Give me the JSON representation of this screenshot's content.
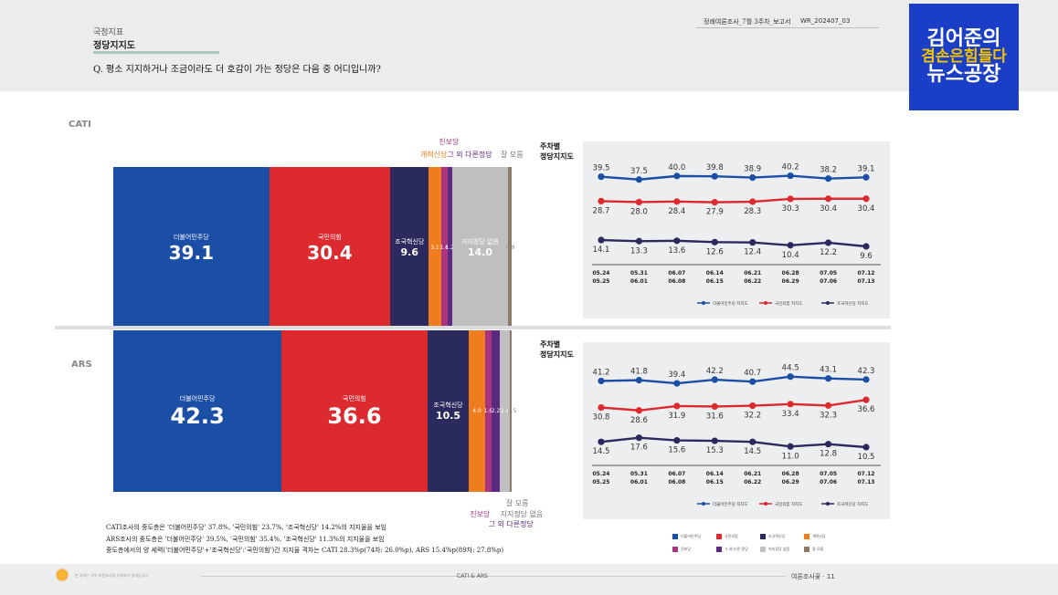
{
  "header": {
    "small_label": "국정지표",
    "title": "정당지지도",
    "question": "Q. 평소 지지하거나 조금이라도 더 호감이 가는 정당은 다음 중 어디입니까?",
    "doc_id": "정례여론조사_7월 3주차_보고서",
    "doc_code": "WR_202407_03"
  },
  "logo": {
    "line1": "김어준의",
    "line2": "겸손은힘들다",
    "line3": "뉴스공장"
  },
  "colors": {
    "dem": "#1b4fa6",
    "ppp": "#dd2a2e",
    "rebuild": "#2b2a5e",
    "reform": "#f07d1d",
    "progressive": "#a8357f",
    "other": "#5b2a80",
    "none": "#bfbfbf",
    "dk": "#8a7a67"
  },
  "cati": {
    "section_label": "CATI",
    "segments": [
      {
        "key": "dem",
        "name": "더불어민주당",
        "value": 39.1,
        "label": "39.1"
      },
      {
        "key": "ppp",
        "name": "국민의힘",
        "value": 30.4,
        "label": "30.4"
      },
      {
        "key": "rebuild",
        "name": "조국혁신당",
        "value": 9.6,
        "label": "9.6"
      },
      {
        "key": "reform",
        "name": "",
        "value": 3.1,
        "label": "3.1"
      },
      {
        "key": "progressive",
        "name": "",
        "value": 1.6,
        "label": "1.6"
      },
      {
        "key": "other",
        "name": "",
        "value": 1.2,
        "label": "1.2"
      },
      {
        "key": "none",
        "name": "지지정당 없음",
        "value": 14.0,
        "label": "14.0"
      },
      {
        "key": "dk",
        "name": "",
        "value": 0.9,
        "label": "0.9"
      }
    ],
    "ext_labels": {
      "reform": "개혁신당",
      "progressive": "진보당",
      "other": "그 외 다른정당",
      "dk": "잘 모름"
    }
  },
  "ars": {
    "section_label": "ARS",
    "segments": [
      {
        "key": "dem",
        "name": "더불어민주당",
        "value": 42.3,
        "label": "42.3"
      },
      {
        "key": "ppp",
        "name": "국민의힘",
        "value": 36.6,
        "label": "36.6"
      },
      {
        "key": "rebuild",
        "name": "조국혁신당",
        "value": 10.5,
        "label": "10.5"
      },
      {
        "key": "reform",
        "name": "개혁 신당",
        "value": 4.0,
        "label": "4.0"
      },
      {
        "key": "progressive",
        "name": "",
        "value": 1.6,
        "label": "1.6"
      },
      {
        "key": "other",
        "name": "",
        "value": 2.2,
        "label": "2.2"
      },
      {
        "key": "none",
        "name": "",
        "value": 2.4,
        "label": "2.4"
      },
      {
        "key": "dk",
        "name": "",
        "value": 0.5,
        "label": "0.5"
      }
    ],
    "ext_labels": {
      "progressive": "진보당",
      "other": "그 외 다른정당",
      "none": "지지정당 없음",
      "dk": "잘 모름"
    }
  },
  "weekly": {
    "title_line1": "주차별",
    "title_line2": "정당지지도",
    "date_top": [
      "05.24",
      "05.31",
      "06.07",
      "06.14",
      "06.21",
      "06.28",
      "07.05",
      "07.12"
    ],
    "date_bottom": [
      "05.25",
      "06.01",
      "06.08",
      "06.15",
      "06.22",
      "06.29",
      "07.06",
      "07.13"
    ],
    "legend": [
      "더불어민주당 지지도",
      "국민의힘 지지도",
      "조국혁신당 지지도"
    ]
  },
  "chart_data": [
    {
      "type": "line",
      "title": "주차별 정당지지도",
      "x": [
        "05.24",
        "05.31",
        "06.07",
        "06.14",
        "06.21",
        "06.28",
        "07.05",
        "07.12"
      ],
      "series": [
        {
          "name": "더불어민주당 지지도",
          "values": [
            39.5,
            37.5,
            40.0,
            39.8,
            38.9,
            40.2,
            38.2,
            39.1
          ]
        },
        {
          "name": "국민의힘 지지도",
          "values": [
            28.7,
            28.0,
            28.4,
            27.9,
            28.3,
            30.3,
            30.4,
            30.4
          ]
        },
        {
          "name": "조국혁신당 지지도",
          "values": [
            14.1,
            13.3,
            13.6,
            12.6,
            12.4,
            10.4,
            12.2,
            9.6
          ]
        }
      ]
    },
    {
      "type": "line",
      "title": "주차별 정당지지도",
      "x": [
        "05.24",
        "05.31",
        "06.07",
        "06.14",
        "06.21",
        "06.28",
        "07.05",
        "07.12"
      ],
      "series": [
        {
          "name": "더불어민주당 지지도",
          "values": [
            41.2,
            41.8,
            39.4,
            42.2,
            40.7,
            44.5,
            43.1,
            42.3
          ]
        },
        {
          "name": "국민의힘 지지도",
          "values": [
            30.8,
            28.6,
            31.9,
            31.6,
            32.2,
            33.4,
            32.3,
            36.6
          ]
        },
        {
          "name": "조국혁신당 지지도",
          "values": [
            14.5,
            17.6,
            15.6,
            15.3,
            14.5,
            11.0,
            12.8,
            10.5
          ]
        }
      ]
    }
  ],
  "notes": [
    "CATI조사의 중도층은 '더불어민주당' 37.8%, '국민의힘' 23.7%, '조국혁신당' 14.2%의 지지율을 보임",
    "ARS조사의 중도층은 '더불어민주당' 39.5%, '국민의힘' 35.4%, '조국혁신당' 11.3%의 지지율을 보임",
    "중도층에서의 양 세력('더불어민주당'+'조국혁신당':'국민의힘')간 지지율 격차는 CATI 28.3%p(74차: 26.0%p), ARS 15.4%p(89차: 27.8%p)"
  ],
  "bottom_legend": [
    "더불어민주당",
    "국민의힘",
    "조국혁신당",
    "개혁신당",
    "진보당",
    "그 외 다른 정당",
    "지지정당 없음",
    "잘 모름"
  ],
  "footer": {
    "center": "CATI & ARS",
    "right": "여론조사꽃 · 11",
    "left": "본 자료는 모두 여론조사꽃 자체조사 결과입니다."
  }
}
